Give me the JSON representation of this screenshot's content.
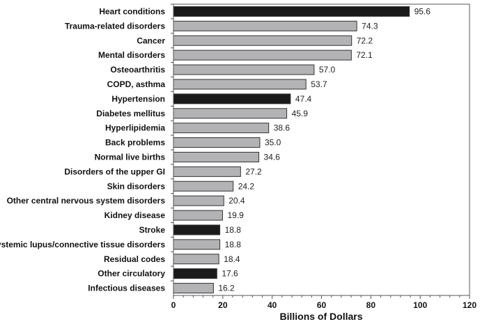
{
  "chart_data": {
    "type": "bar",
    "orientation": "horizontal",
    "title": "",
    "xlabel": "Billions of Dollars",
    "ylabel": "",
    "xlim": [
      0,
      120
    ],
    "xticks": [
      0,
      20,
      40,
      60,
      80,
      100,
      120
    ],
    "grid": false,
    "categories": [
      "Heart conditions",
      "Trauma-related disorders",
      "Cancer",
      "Mental disorders",
      "Osteoarthritis",
      "COPD, asthma",
      "Hypertension",
      "Diabetes mellitus",
      "Hyperlipidemia",
      "Back problems",
      "Normal live births",
      "Disorders of the upper GI",
      "Skin disorders",
      "Other central nervous system disorders",
      "Kidney disease",
      "Stroke",
      "Systemic lupus/connective tissue disorders",
      "Residual codes",
      "Other circulatory",
      "Infectious diseases"
    ],
    "values": [
      95.6,
      74.3,
      72.2,
      72.1,
      57.0,
      53.7,
      47.4,
      45.9,
      38.6,
      35.0,
      34.6,
      27.2,
      24.2,
      20.4,
      19.9,
      18.8,
      18.8,
      18.4,
      17.6,
      16.2
    ],
    "value_labels": [
      "95.6",
      "74.3",
      "72.2",
      "72.1",
      "57.0",
      "53.7",
      "47.4",
      "45.9",
      "38.6",
      "35.0",
      "34.6",
      "27.2",
      "24.2",
      "20.4",
      "19.9",
      "18.8",
      "18.8",
      "18.4",
      "17.6",
      "16.2"
    ],
    "highlighted": [
      "Heart conditions",
      "Hypertension",
      "Stroke",
      "Other circulatory"
    ],
    "colors": {
      "highlight": "#1a1a1a",
      "default": "#b3b3b6",
      "outline": "#333333"
    }
  }
}
